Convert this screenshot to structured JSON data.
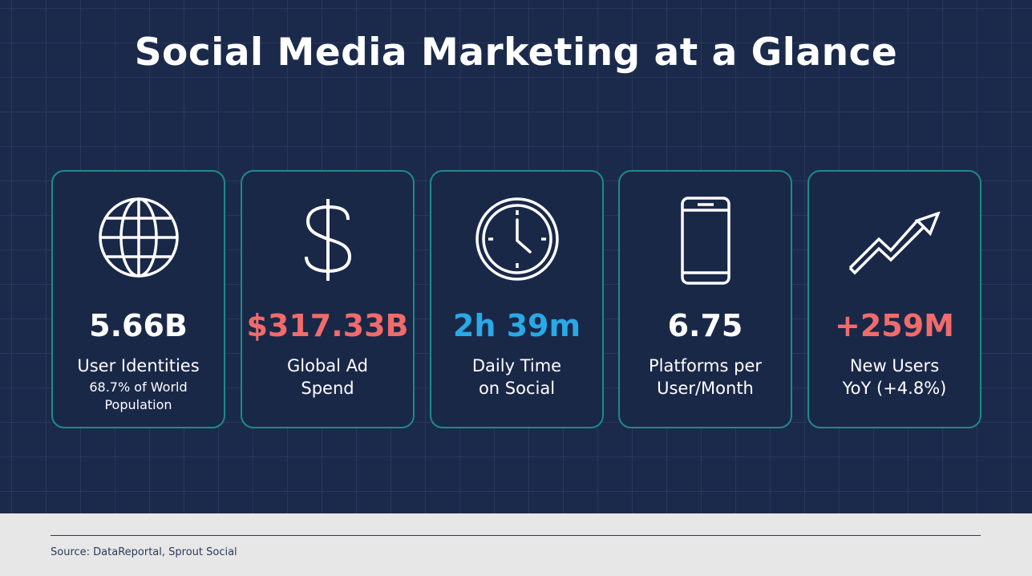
{
  "header": {
    "title": "Social Media Marketing at a Glance"
  },
  "cards": [
    {
      "value": "5.66B",
      "color": "#ffffff",
      "label_lines": [
        "User Identities"
      ],
      "sub_lines": [
        "68.7% of World",
        "Population"
      ]
    },
    {
      "value": "$317.33B",
      "color": "#f26b6b",
      "label_lines": [
        "Global Ad",
        "Spend"
      ]
    },
    {
      "value": "2h 39m",
      "color": "#29a9e6",
      "label_lines": [
        "Daily Time",
        "on Social"
      ]
    },
    {
      "value": "6.75",
      "color": "#ffffff",
      "label_lines": [
        "Platforms per",
        "User/Month"
      ]
    },
    {
      "value": "+259M",
      "color": "#f26b6b",
      "label_lines": [
        "New Users",
        "YoY (+4.8%)"
      ]
    }
  ],
  "footer": {
    "source": "Source: DataReportal, Sprout Social"
  }
}
